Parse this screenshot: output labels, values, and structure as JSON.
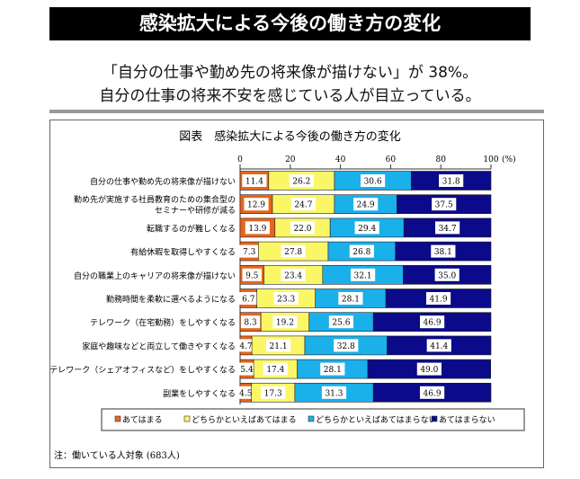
{
  "header": {
    "title": "感染拡大による今後の働き方の変化",
    "subtitle_line1": "「自分の仕事や勤め先の将来像が描けない」が 38%。",
    "subtitle_line2": "自分の仕事の将来不安を感じている人が目立っている。"
  },
  "note": "注：働いている人対象 (683人)",
  "chart_data": {
    "type": "bar",
    "orientation": "horizontal",
    "stacked": true,
    "title": "図表　感染拡大による今後の働き方の変化",
    "xlim": [
      0,
      100
    ],
    "xticks": [
      0,
      20,
      40,
      60,
      80,
      100
    ],
    "x_unit": "(%)",
    "categories": [
      "自分の仕事や勤め先の将来像が描けない",
      "勤め先が実施する社員教育のための集合型の\nセミナーや研修が減る",
      "転職するのが難しくなる",
      "有給休暇を取得しやすくなる",
      "自分の職業上のキャリアの将来像が描けない",
      "勤務時間を柔軟に選べるようになる",
      "テレワーク（在宅勤務）をしやすくなる",
      "家庭や趣味などと両立して働きやすくなる",
      "テレワーク（シェアオフィスなど）をしやすくなる",
      "副業をしやすくなる"
    ],
    "series": [
      {
        "name": "あてはまる",
        "color": "#e8641a",
        "values": [
          11.4,
          12.9,
          13.9,
          7.3,
          9.5,
          6.7,
          8.3,
          4.7,
          5.4,
          4.5
        ]
      },
      {
        "name": "どちらかといえばあてはまる",
        "color": "#fbf666",
        "values": [
          26.2,
          24.7,
          22.0,
          27.8,
          23.4,
          23.3,
          19.2,
          21.1,
          17.4,
          17.3
        ]
      },
      {
        "name": "どちらかといえばあてはまらない",
        "color": "#1ab0ea",
        "values": [
          30.6,
          24.9,
          29.4,
          26.8,
          32.1,
          28.1,
          25.6,
          32.8,
          28.1,
          31.3
        ]
      },
      {
        "name": "あてはまらない",
        "color": "#0a0a8a",
        "values": [
          31.8,
          37.5,
          34.7,
          38.1,
          35.0,
          41.9,
          46.9,
          41.4,
          49.0,
          46.9
        ]
      }
    ],
    "legend": "bottom",
    "grid": false
  }
}
